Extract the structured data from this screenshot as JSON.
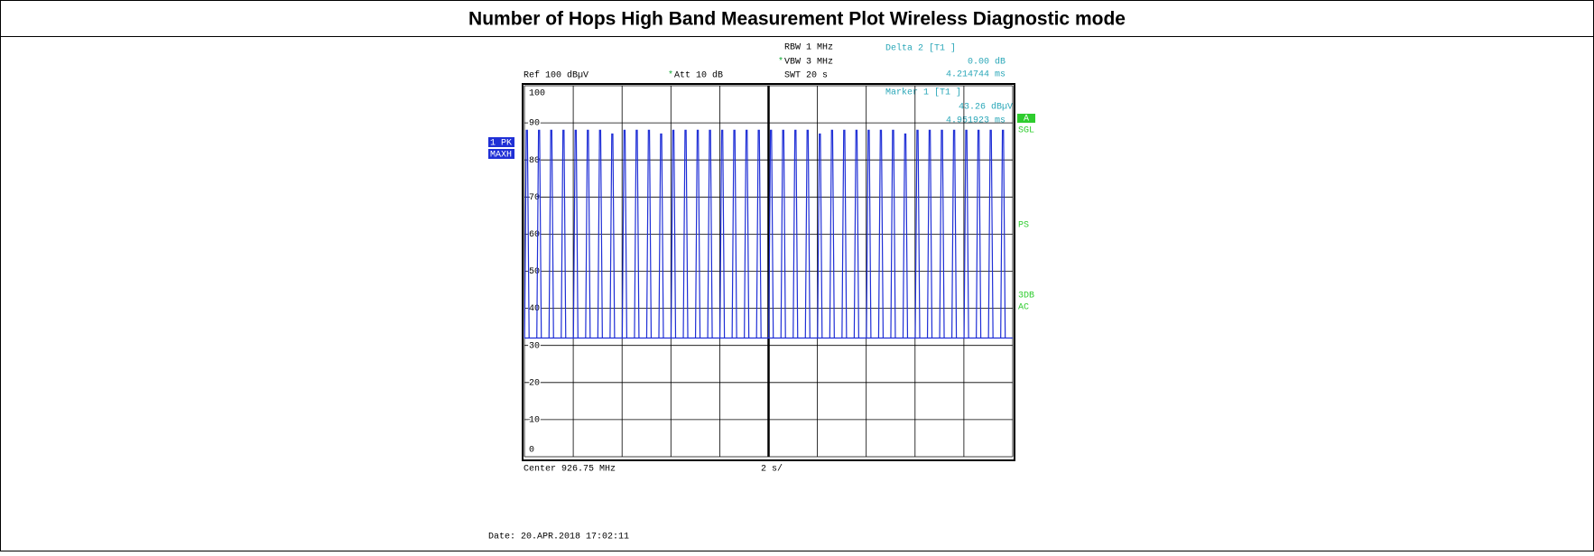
{
  "chart_data": {
    "type": "hops",
    "title": "Number of Hops High Band Measurement Plot Wireless Diagnostic mode",
    "settings": {
      "rbw": "RBW 1 MHz",
      "vbw": "VBW 3 MHz",
      "swt": "SWT 20 s",
      "ref": "Ref  100 dBµV",
      "att": "Att  10 dB"
    },
    "delta": {
      "label": "Delta 2 [T1 ]",
      "level": "0.00 dB",
      "time": "4.214744 ms"
    },
    "marker": {
      "label": "Marker 1 [T1 ]",
      "level": "43.26 dBµV",
      "time": "4.951923 ms"
    },
    "left_tags": [
      "1 PK",
      "MAXH"
    ],
    "right_tags": {
      "a": "A",
      "sgl": "SGL",
      "ps": "PS",
      "db": "3DB",
      "ac": "AC"
    },
    "center": "Center 926.75 MHz",
    "span": "2 s/",
    "date": "Date: 20.APR.2018  17:02:11",
    "color": "#1f2fd6",
    "noise_floor": 32,
    "x": [
      0.1,
      0.6,
      1.1,
      1.6,
      2.1,
      2.6,
      3.1,
      3.6,
      4.1,
      4.6,
      5.1,
      5.6,
      6.1,
      6.6,
      7.1,
      7.6,
      8.1,
      8.6,
      9.1,
      9.6,
      10.1,
      10.6,
      11.1,
      11.6,
      12.1,
      12.6,
      13.1,
      13.6,
      14.1,
      14.6,
      15.1,
      15.6,
      16.1,
      16.6,
      17.1,
      17.6,
      18.1,
      18.6,
      19.1,
      19.6
    ],
    "values": [
      88,
      88,
      88,
      88,
      88,
      88,
      88,
      87,
      88,
      88,
      88,
      87,
      88,
      88,
      88,
      88,
      88,
      88,
      88,
      88,
      88,
      88,
      88,
      88,
      87,
      88,
      88,
      88,
      88,
      88,
      88,
      87,
      88,
      88,
      88,
      88,
      88,
      88,
      88,
      88
    ],
    "xlim": [
      0,
      20
    ],
    "xticks": [
      0,
      2,
      4,
      6,
      8,
      10,
      12,
      14,
      16,
      18,
      20
    ],
    "ylim": [
      0,
      100
    ],
    "yticks": [
      0,
      10,
      20,
      30,
      40,
      50,
      60,
      70,
      80,
      90,
      100
    ],
    "grid": true
  }
}
